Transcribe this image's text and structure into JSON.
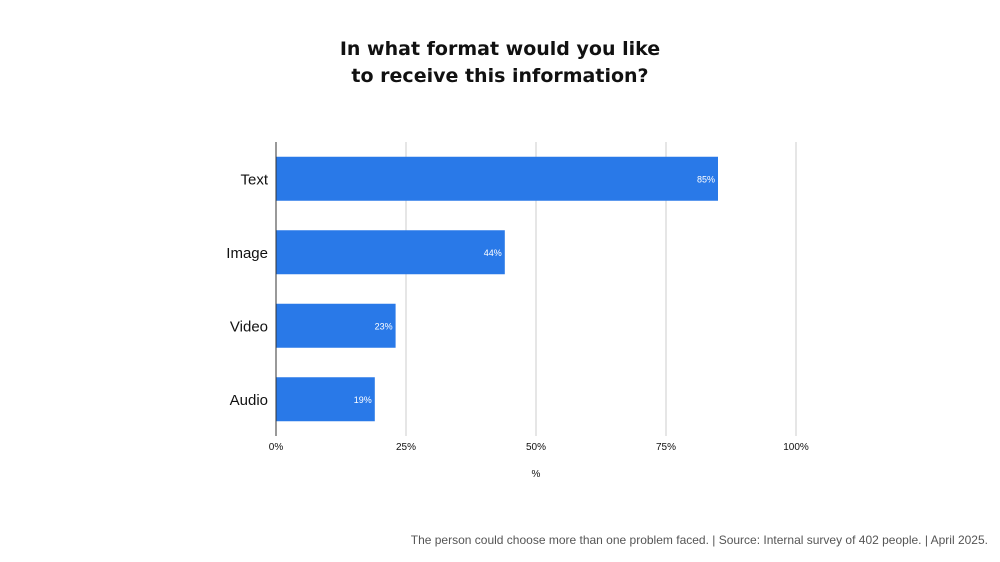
{
  "chart_data": {
    "type": "bar",
    "orientation": "horizontal",
    "title": "In what format would you like to receive this information?",
    "xlabel": "%",
    "ylabel": "",
    "categories": [
      "Text",
      "Image",
      "Video",
      "Audio"
    ],
    "values": [
      85,
      44,
      23,
      19
    ],
    "data_labels": [
      "85%",
      "44%",
      "23%",
      "19%"
    ],
    "xlim": [
      0,
      100
    ],
    "xticks": [
      0,
      25,
      50,
      75,
      100
    ],
    "xtick_labels": [
      "0%",
      "25%",
      "50%",
      "75%",
      "100%"
    ],
    "grid": true,
    "bar_color": "#2979e8"
  },
  "footnote": "The person could choose more than one problem faced. | Source: Internal survey of 402 people. | April 2025."
}
